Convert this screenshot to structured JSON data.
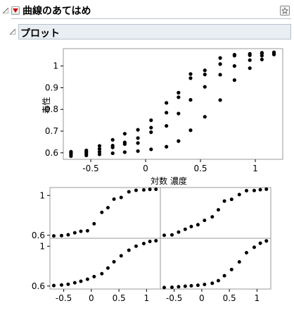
{
  "report": {
    "title": "曲線のあてはめ",
    "section_title": "プロット"
  },
  "colors": {
    "points": "#000000",
    "frame": "#9a9a9a",
    "header_bg": "#e9eef3",
    "menu_red": "#cc0000"
  },
  "icons": [
    "disclosure-triangle-icon",
    "red-triangle-menu-icon",
    "star-pin-icon"
  ],
  "chart_data": [
    {
      "type": "scatter",
      "title": "",
      "xlabel": "対数 濃度",
      "ylabel": "毒性",
      "xlim": [
        -0.75,
        1.25
      ],
      "ylim": [
        0.57,
        1.08
      ],
      "xticks": [
        -0.5,
        0,
        0.5,
        1
      ],
      "xtick_labels": [
        "-0.5",
        "0",
        "0.5",
        "1"
      ],
      "yticks": [
        0.6,
        0.7,
        0.8,
        0.9,
        1.0
      ],
      "ytick_labels": [
        "0.6",
        "0.7",
        "0.8",
        "0.9",
        "1"
      ],
      "series": [
        {
          "x": [
            -0.68,
            -0.54,
            -0.42,
            -0.3,
            -0.19,
            -0.07,
            0.05,
            0.19,
            0.3,
            0.41,
            0.54,
            0.68,
            0.81,
            0.95,
            1.06,
            1.17
          ],
          "y": [
            0.594,
            0.597,
            0.605,
            0.625,
            0.64,
            0.645,
            0.716,
            0.83,
            0.877,
            0.963,
            0.98,
            1.037,
            1.052,
            1.056,
            1.061,
            1.062
          ]
        },
        {
          "x": [
            -0.68,
            -0.54,
            -0.42,
            -0.3,
            -0.19,
            -0.07,
            0.05,
            0.19,
            0.3,
            0.41,
            0.54,
            0.68,
            0.81,
            0.95,
            1.06,
            1.17
          ],
          "y": [
            0.6,
            0.604,
            0.632,
            0.66,
            0.688,
            0.706,
            0.75,
            0.785,
            0.856,
            0.944,
            0.961,
            1.009,
            1.048,
            1.05,
            1.058,
            1.063
          ]
        },
        {
          "x": [
            -0.68,
            -0.54,
            -0.42,
            -0.3,
            -0.19,
            -0.07,
            0.05,
            0.19,
            0.3,
            0.41,
            0.54,
            0.68,
            0.81,
            0.95,
            1.06,
            1.17
          ],
          "y": [
            0.605,
            0.611,
            0.618,
            0.633,
            0.648,
            0.668,
            0.695,
            0.724,
            0.781,
            0.844,
            0.904,
            0.96,
            1.0,
            1.027,
            1.048,
            1.055
          ]
        },
        {
          "x": [
            -0.68,
            -0.54,
            -0.42,
            -0.3,
            -0.19,
            -0.07,
            0.05,
            0.19,
            0.3,
            0.41,
            0.54,
            0.68,
            0.81,
            0.95,
            1.06,
            1.17
          ],
          "y": [
            0.585,
            0.588,
            0.593,
            0.598,
            0.603,
            0.608,
            0.616,
            0.628,
            0.654,
            0.704,
            0.766,
            0.843,
            0.935,
            0.99,
            1.03,
            1.053
          ]
        }
      ]
    },
    {
      "type": "scatter",
      "title": "",
      "xlabel": "",
      "ylabel": "",
      "layout": "2x2 panels",
      "xlim": [
        -0.75,
        1.25
      ],
      "ylim": [
        0.57,
        1.08
      ],
      "xticks": [
        -0.5,
        0,
        0.5,
        1
      ],
      "xtick_labels": [
        "-0.5",
        "0",
        "0.5",
        "1"
      ],
      "yticks": [
        0.6,
        1.0
      ],
      "ytick_labels": [
        "0.6",
        "1"
      ]
    }
  ]
}
